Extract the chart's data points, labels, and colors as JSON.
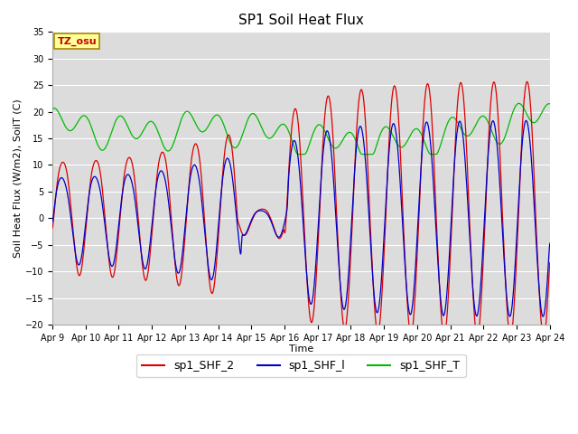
{
  "title": "SP1 Soil Heat Flux",
  "xlabel": "Time",
  "ylabel": "Soil Heat Flux (W/m2), SoilT (C)",
  "ylim": [
    -20,
    35
  ],
  "yticks": [
    -20,
    -15,
    -10,
    -5,
    0,
    5,
    10,
    15,
    20,
    25,
    30,
    35
  ],
  "bg_color": "#dcdcdc",
  "fig_color": "#ffffff",
  "line_colors": {
    "shf2": "#dd0000",
    "shfl": "#0000cc",
    "shfT": "#00bb00"
  },
  "legend_labels": [
    "sp1_SHF_2",
    "sp1_SHF_l",
    "sp1_SHF_T"
  ],
  "tz_label": "TZ_osu",
  "tz_bg": "#ffff99",
  "tz_fg": "#cc0000",
  "tz_edge": "#aa8800",
  "x_tick_labels": [
    "Apr 9",
    "Apr 10",
    "Apr 11",
    "Apr 12",
    "Apr 13",
    "Apr 14",
    "Apr 15",
    "Apr 16",
    "Apr 17",
    "Apr 18",
    "Apr 19",
    "Apr 20",
    "Apr 21",
    "Apr 22",
    "Apr 23",
    "Apr 24"
  ],
  "grid_color": "#ffffff",
  "title_fontsize": 11,
  "label_fontsize": 8,
  "tick_fontsize": 7,
  "legend_fontsize": 9
}
